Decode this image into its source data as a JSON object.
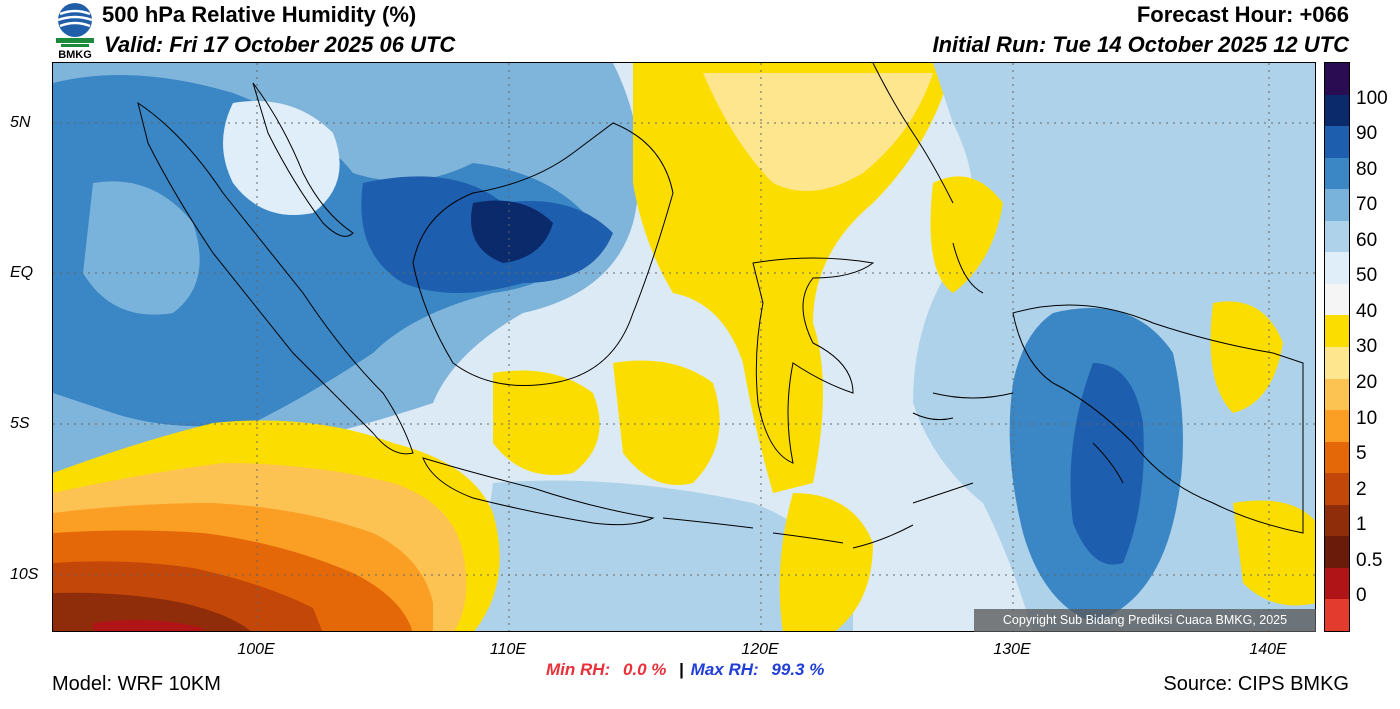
{
  "header": {
    "title": "500 hPa Relative Humidity (%)",
    "valid": "Valid: Fri 17 October 2025 06 UTC",
    "forecast_hour": "Forecast Hour: +066",
    "initial_run": "Initial Run: Tue 14 October 2025 12 UTC"
  },
  "logo": {
    "text": "BMKG"
  },
  "axes": {
    "y_ticks": [
      "5N",
      "EQ",
      "5S",
      "10S"
    ],
    "x_ticks": [
      "100E",
      "110E",
      "120E",
      "130E",
      "140E"
    ]
  },
  "colorbar": {
    "labels": [
      "100",
      "90",
      "80",
      "70",
      "60",
      "50",
      "40",
      "30",
      "20",
      "10",
      "5",
      "2",
      "1",
      "0.5",
      "0"
    ],
    "colors": [
      "#2a0c53",
      "#0a2a6b",
      "#1e5eae",
      "#3b86c4",
      "#79b2da",
      "#aed2ea",
      "#dfeef8",
      "#f5f5f5",
      "#fcdd00",
      "#fde68e",
      "#fcc352",
      "#fb9f24",
      "#e46807",
      "#c24708",
      "#8f2d0a",
      "#6a1b0a",
      "#b01416",
      "#e33b2e"
    ]
  },
  "copyright": "Copyright Sub Bidang Prediksi Cuaca BMKG, 2025",
  "stats": {
    "min_label": "Min RH:",
    "min_value": "0.0 %",
    "separator": "|",
    "max_label": "Max RH:",
    "max_value": "99.3 %"
  },
  "footer": {
    "model": "Model: WRF 10KM",
    "source": "Source: CIPS BMKG"
  }
}
